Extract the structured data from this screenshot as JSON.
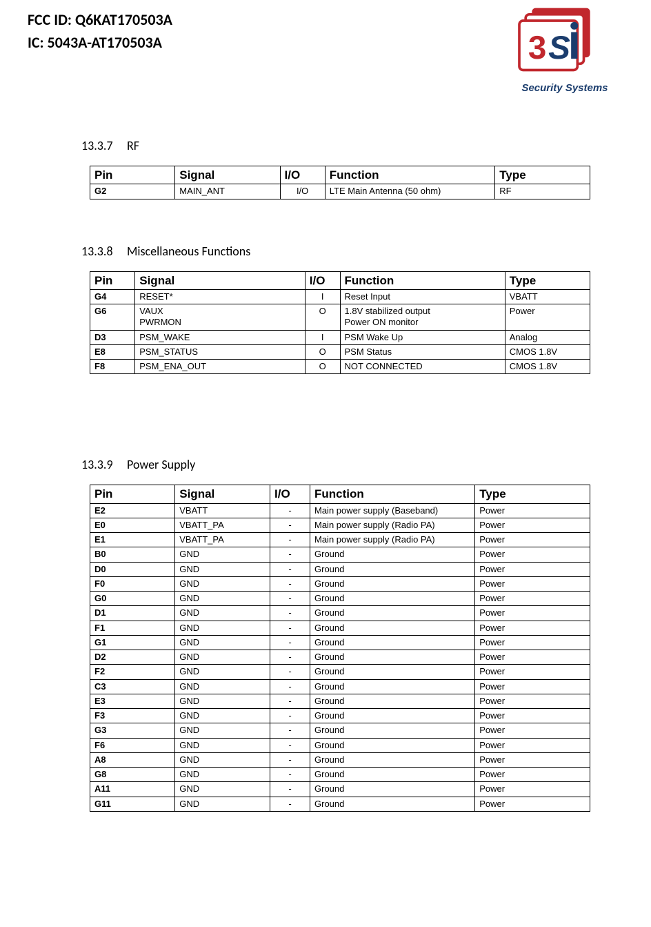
{
  "header": {
    "fcc_id_line": "FCC ID: Q6KAT170503A",
    "ic_id_line": "IC: 5043A-AT170503A",
    "logo_caption": "Security Systems",
    "logo_colors": {
      "red": "#c1272d",
      "blue": "#1b3d6d"
    }
  },
  "table_headers": {
    "pin": "Pin",
    "signal": "Signal",
    "io": "I/O",
    "function": "Function",
    "type": "Type"
  },
  "sections": [
    {
      "num": "13.3.7",
      "title": "RF",
      "col_widths": [
        "17%",
        "21%",
        "9%",
        "34%",
        "19%"
      ],
      "rows": [
        {
          "pin": "G2",
          "signal": "MAIN_ANT",
          "io": "I/O",
          "function": "LTE Main Antenna (50 ohm)",
          "type": "RF"
        }
      ]
    },
    {
      "num": "13.3.8",
      "title": "Miscellaneous Functions",
      "col_widths": [
        "9%",
        "34%",
        "7%",
        "33%",
        "17%"
      ],
      "rows": [
        {
          "pin": "G4",
          "signal": "RESET*",
          "io": "I",
          "function": "Reset Input",
          "type": "VBATT"
        },
        {
          "pin": "G6",
          "signal": "VAUX\nPWRMON",
          "io": "O",
          "function": "1.8V stabilized output\nPower ON monitor",
          "type": "Power"
        },
        {
          "pin": "D3",
          "signal": "PSM_WAKE",
          "io": "I",
          "function": "PSM Wake Up",
          "type": "Analog"
        },
        {
          "pin": "E8",
          "signal": "PSM_STATUS",
          "io": "O",
          "function": "PSM Status",
          "type": "CMOS 1.8V"
        },
        {
          "pin": "F8",
          "signal": "PSM_ENA_OUT",
          "io": "O",
          "function": "NOT CONNECTED",
          "type": "CMOS 1.8V"
        }
      ]
    },
    {
      "num": "13.3.9",
      "title": "Power Supply",
      "col_widths": [
        "17%",
        "19%",
        "8%",
        "33%",
        "23%"
      ],
      "rows": [
        {
          "pin": "E2",
          "signal": "VBATT",
          "io": "-",
          "function": "Main power supply (Baseband)",
          "type": "Power"
        },
        {
          "pin": "E0",
          "signal": "VBATT_PA",
          "io": "-",
          "function": "Main power supply (Radio PA)",
          "type": "Power"
        },
        {
          "pin": "E1",
          "signal": "VBATT_PA",
          "io": "-",
          "function": "Main power supply (Radio PA)",
          "type": "Power"
        },
        {
          "pin": "B0",
          "signal": "GND",
          "io": "-",
          "function": "Ground",
          "type": "Power"
        },
        {
          "pin": "D0",
          "signal": "GND",
          "io": "-",
          "function": "Ground",
          "type": "Power"
        },
        {
          "pin": "F0",
          "signal": "GND",
          "io": "-",
          "function": "Ground",
          "type": "Power"
        },
        {
          "pin": "G0",
          "signal": "GND",
          "io": "-",
          "function": "Ground",
          "type": "Power"
        },
        {
          "pin": "D1",
          "signal": "GND",
          "io": "-",
          "function": "Ground",
          "type": "Power"
        },
        {
          "pin": "F1",
          "signal": "GND",
          "io": "-",
          "function": "Ground",
          "type": "Power"
        },
        {
          "pin": "G1",
          "signal": "GND",
          "io": "-",
          "function": "Ground",
          "type": "Power"
        },
        {
          "pin": "D2",
          "signal": "GND",
          "io": "-",
          "function": "Ground",
          "type": "Power"
        },
        {
          "pin": "F2",
          "signal": "GND",
          "io": "-",
          "function": "Ground",
          "type": "Power"
        },
        {
          "pin": "C3",
          "signal": "GND",
          "io": "-",
          "function": "Ground",
          "type": "Power"
        },
        {
          "pin": "E3",
          "signal": "GND",
          "io": "-",
          "function": "Ground",
          "type": "Power"
        },
        {
          "pin": "F3",
          "signal": "GND",
          "io": "-",
          "function": "Ground",
          "type": "Power"
        },
        {
          "pin": "G3",
          "signal": "GND",
          "io": "-",
          "function": "Ground",
          "type": "Power"
        },
        {
          "pin": "F6",
          "signal": "GND",
          "io": "-",
          "function": "Ground",
          "type": "Power"
        },
        {
          "pin": "A8",
          "signal": "GND",
          "io": "-",
          "function": "Ground",
          "type": "Power"
        },
        {
          "pin": "G8",
          "signal": "GND",
          "io": "-",
          "function": "Ground",
          "type": "Power"
        },
        {
          "pin": "A11",
          "signal": "GND",
          "io": "-",
          "function": "Ground",
          "type": "Power"
        },
        {
          "pin": "G11",
          "signal": "GND",
          "io": "-",
          "function": "Ground",
          "type": "Power"
        }
      ]
    }
  ]
}
